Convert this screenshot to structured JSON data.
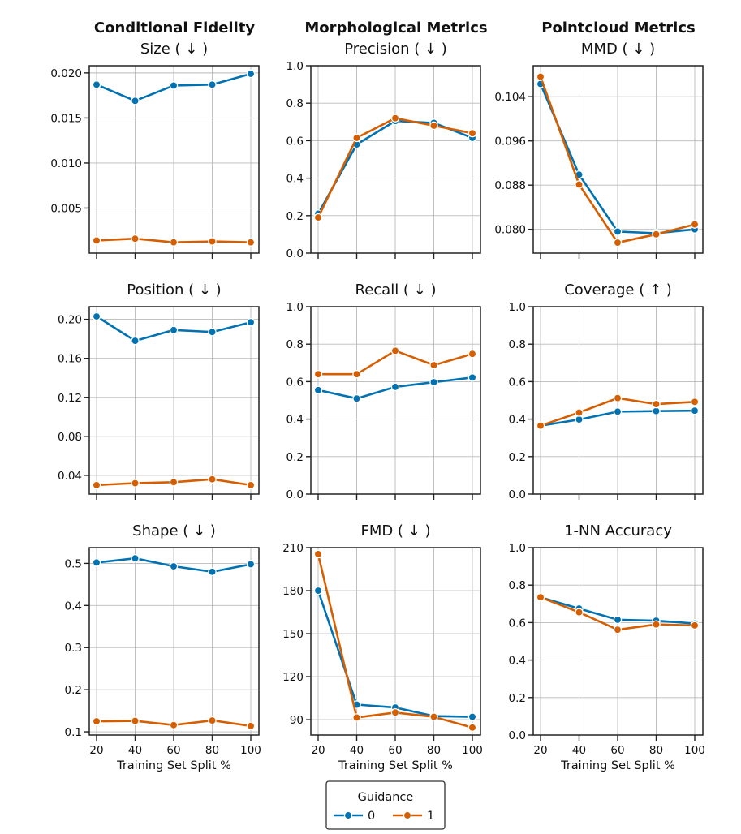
{
  "column_headers": [
    "Conditional Fidelity",
    "Morphological Metrics",
    "Pointcloud Metrics"
  ],
  "legend": {
    "title": "Guidance",
    "entries": [
      {
        "label": "0",
        "color": "#0072B2"
      },
      {
        "label": "1",
        "color": "#D55E00"
      }
    ]
  },
  "chart_data": [
    {
      "type": "line",
      "title": "Size ( ↓ )",
      "xlabel": "",
      "ylabel": "",
      "x": [
        20,
        40,
        60,
        80,
        100
      ],
      "xticks": [
        "",
        "",
        "",
        "",
        ""
      ],
      "ylim": [
        0.0,
        0.0208
      ],
      "yticks": [
        0.005,
        0.01,
        0.015,
        0.02
      ],
      "ytick_labels": [
        "0.005",
        "0.010",
        "0.015",
        "0.020"
      ],
      "series": [
        {
          "name": "0",
          "values": [
            0.0187,
            0.0169,
            0.0186,
            0.0187,
            0.0199
          ]
        },
        {
          "name": "1",
          "values": [
            0.0014,
            0.0016,
            0.0012,
            0.0013,
            0.0012
          ]
        }
      ]
    },
    {
      "type": "line",
      "title": "Precision ( ↓ )",
      "xlabel": "",
      "ylabel": "",
      "x": [
        20,
        40,
        60,
        80,
        100
      ],
      "xticks": [
        "",
        "",
        "",
        "",
        ""
      ],
      "ylim": [
        0.0,
        1.0
      ],
      "yticks": [
        0.0,
        0.2,
        0.4,
        0.6,
        0.8,
        1.0
      ],
      "ytick_labels": [
        "0.0",
        "0.2",
        "0.4",
        "0.6",
        "0.8",
        "1.0"
      ],
      "series": [
        {
          "name": "0",
          "values": [
            0.21,
            0.58,
            0.705,
            0.695,
            0.615
          ]
        },
        {
          "name": "1",
          "values": [
            0.19,
            0.615,
            0.72,
            0.68,
            0.64
          ]
        }
      ]
    },
    {
      "type": "line",
      "title": "MMD ( ↓ )",
      "xlabel": "",
      "ylabel": "",
      "x": [
        20,
        40,
        60,
        80,
        100
      ],
      "xticks": [
        "",
        "",
        "",
        "",
        ""
      ],
      "ylim": [
        0.0757,
        0.1096
      ],
      "yticks": [
        0.08,
        0.088,
        0.096,
        0.104
      ],
      "ytick_labels": [
        "0.080",
        "0.088",
        "0.096",
        "0.104"
      ],
      "series": [
        {
          "name": "0",
          "values": [
            0.1063,
            0.0899,
            0.0796,
            0.0793,
            0.08
          ]
        },
        {
          "name": "1",
          "values": [
            0.1076,
            0.0881,
            0.0776,
            0.0791,
            0.0809
          ]
        }
      ]
    },
    {
      "type": "line",
      "title": "Position ( ↓ )",
      "xlabel": "",
      "ylabel": "",
      "x": [
        20,
        40,
        60,
        80,
        100
      ],
      "xticks": [
        "",
        "",
        "",
        "",
        ""
      ],
      "ylim": [
        0.0208,
        0.213
      ],
      "yticks": [
        0.04,
        0.08,
        0.12,
        0.16,
        0.2
      ],
      "ytick_labels": [
        "0.04",
        "0.08",
        "0.12",
        "0.16",
        "0.20"
      ],
      "series": [
        {
          "name": "0",
          "values": [
            0.203,
            0.178,
            0.189,
            0.187,
            0.197
          ]
        },
        {
          "name": "1",
          "values": [
            0.03,
            0.032,
            0.033,
            0.036,
            0.03
          ]
        }
      ]
    },
    {
      "type": "line",
      "title": "Recall ( ↓ )",
      "xlabel": "",
      "ylabel": "",
      "x": [
        20,
        40,
        60,
        80,
        100
      ],
      "xticks": [
        "",
        "",
        "",
        "",
        ""
      ],
      "ylim": [
        0.0,
        1.0
      ],
      "yticks": [
        0.0,
        0.2,
        0.4,
        0.6,
        0.8,
        1.0
      ],
      "ytick_labels": [
        "0.0",
        "0.2",
        "0.4",
        "0.6",
        "0.8",
        "1.0"
      ],
      "series": [
        {
          "name": "0",
          "values": [
            0.555,
            0.51,
            0.572,
            0.597,
            0.622
          ]
        },
        {
          "name": "1",
          "values": [
            0.64,
            0.64,
            0.765,
            0.688,
            0.748
          ]
        }
      ]
    },
    {
      "type": "line",
      "title": "Coverage ( ↑ )",
      "xlabel": "",
      "ylabel": "",
      "x": [
        20,
        40,
        60,
        80,
        100
      ],
      "xticks": [
        "",
        "",
        "",
        "",
        ""
      ],
      "ylim": [
        0.0,
        1.0
      ],
      "yticks": [
        0.0,
        0.2,
        0.4,
        0.6,
        0.8,
        1.0
      ],
      "ytick_labels": [
        "0.0",
        "0.2",
        "0.4",
        "0.6",
        "0.8",
        "1.0"
      ],
      "series": [
        {
          "name": "0",
          "values": [
            0.365,
            0.398,
            0.44,
            0.443,
            0.445
          ]
        },
        {
          "name": "1",
          "values": [
            0.365,
            0.435,
            0.512,
            0.48,
            0.492
          ]
        }
      ]
    },
    {
      "type": "line",
      "title": "Shape ( ↓ )",
      "xlabel": "Training Set Split %",
      "ylabel": "",
      "x": [
        20,
        40,
        60,
        80,
        100
      ],
      "xticks": [
        "20",
        "40",
        "60",
        "80",
        "100"
      ],
      "ylim": [
        0.0924,
        0.5374
      ],
      "yticks": [
        0.1,
        0.2,
        0.3,
        0.4,
        0.5
      ],
      "ytick_labels": [
        "0.1",
        "0.2",
        "0.3",
        "0.4",
        "0.5"
      ],
      "series": [
        {
          "name": "0",
          "values": [
            0.502,
            0.512,
            0.493,
            0.48,
            0.498
          ]
        },
        {
          "name": "1",
          "values": [
            0.125,
            0.126,
            0.116,
            0.127,
            0.114
          ]
        }
      ]
    },
    {
      "type": "line",
      "title": "FMD ( ↓ )",
      "xlabel": "Training Set Split %",
      "ylabel": "",
      "x": [
        20,
        40,
        60,
        80,
        100
      ],
      "xticks": [
        "20",
        "40",
        "60",
        "80",
        "100"
      ],
      "ylim": [
        79.3,
        210.0
      ],
      "yticks": [
        90,
        120,
        150,
        180,
        210
      ],
      "ytick_labels": [
        "90",
        "120",
        "150",
        "180",
        "210"
      ],
      "series": [
        {
          "name": "0",
          "values": [
            180,
            100.5,
            98.5,
            92.5,
            92.0
          ]
        },
        {
          "name": "1",
          "values": [
            205.5,
            91.5,
            95.0,
            92.0,
            84.5
          ]
        }
      ]
    },
    {
      "type": "line",
      "title": "1-NN Accuracy",
      "xlabel": "Training Set Split %",
      "ylabel": "",
      "x": [
        20,
        40,
        60,
        80,
        100
      ],
      "xticks": [
        "20",
        "40",
        "60",
        "80",
        "100"
      ],
      "ylim": [
        0.0,
        1.0
      ],
      "yticks": [
        0.0,
        0.2,
        0.4,
        0.6,
        0.8,
        1.0
      ],
      "ytick_labels": [
        "0.0",
        "0.2",
        "0.4",
        "0.6",
        "0.8",
        "1.0"
      ],
      "series": [
        {
          "name": "0",
          "values": [
            0.735,
            0.675,
            0.615,
            0.61,
            0.595
          ]
        },
        {
          "name": "1",
          "values": [
            0.735,
            0.655,
            0.562,
            0.59,
            0.585
          ]
        }
      ]
    }
  ]
}
